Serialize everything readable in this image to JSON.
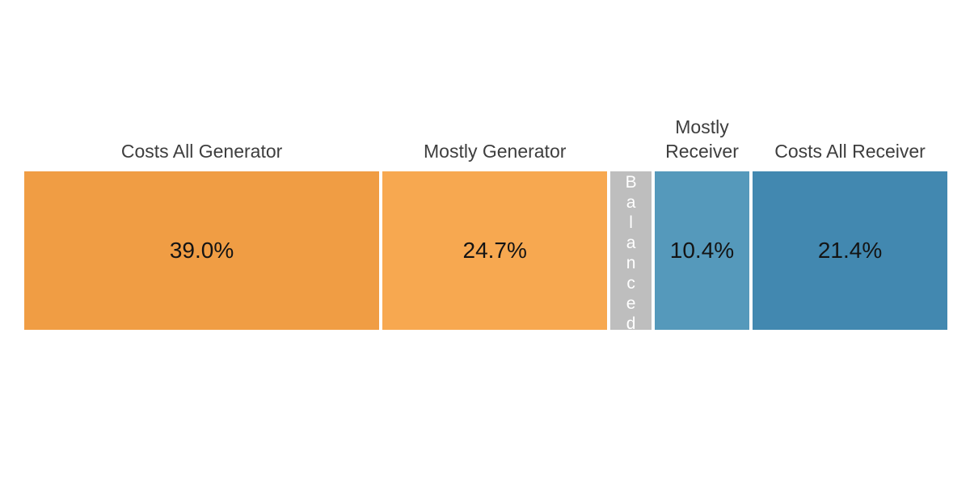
{
  "chart_data": {
    "type": "bar",
    "subtype": "horizontal-stacked-100-percent",
    "title": "",
    "categories": [
      "Costs All Generator",
      "Mostly Generator",
      "Balanced",
      "Mostly Receiver",
      "Costs All Receiver"
    ],
    "values": [
      39.0,
      24.7,
      4.5,
      10.4,
      21.4
    ],
    "value_labels": [
      "39.0%",
      "24.7%",
      "",
      "10.4%",
      "21.4%"
    ],
    "legend_position": "none",
    "grid": false,
    "colors": {
      "generator_dark_orange": "#F09D44",
      "generator_light_orange": "#F7A850",
      "balanced_gray": "#BEBEBE",
      "receiver_light_blue": "#5599BB",
      "receiver_dark_blue": "#4288B0",
      "category_label_text": "#3E3E3E",
      "value_label_text": "#141414",
      "balanced_label_text": "#FFFFFF",
      "background": "#FFFFFF"
    },
    "segments": [
      {
        "label": "Costs All Generator",
        "value": 39.0,
        "value_label": "39.0%",
        "color": "#F09D44",
        "label_position": "top"
      },
      {
        "label": "Mostly Generator",
        "value": 24.7,
        "value_label": "24.7%",
        "color": "#F7A850",
        "label_position": "top"
      },
      {
        "label": "Balanced",
        "value": 4.5,
        "value_label": "",
        "color": "#BEBEBE",
        "label_position": "inside-vertical"
      },
      {
        "label": "Mostly Receiver",
        "value": 10.4,
        "value_label": "10.4%",
        "color": "#5599BB",
        "label_position": "top"
      },
      {
        "label": "Costs All Receiver",
        "value": 21.4,
        "value_label": "21.4%",
        "color": "#4288B0",
        "label_position": "top"
      }
    ]
  }
}
